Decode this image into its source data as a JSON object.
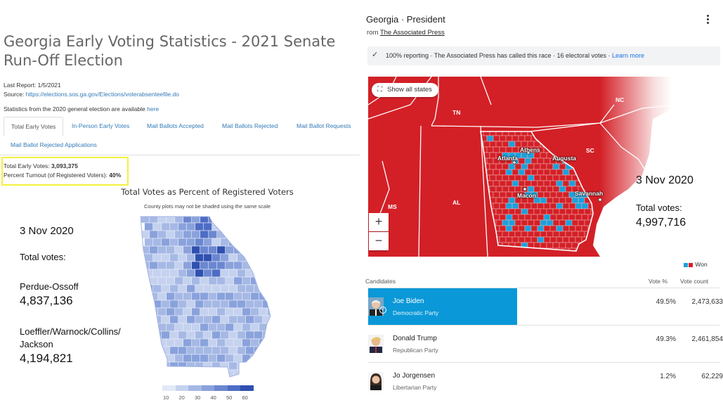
{
  "left": {
    "title": "Georgia Early Voting Statistics - 2021 Senate Run-Off Election",
    "last_report": "Last Report: 1/5/2021",
    "source_label": "Source: ",
    "source_url": "https://elections.sos.ga.gov/Elections/voterabsenteefile.do",
    "general_note_prefix": "Statistics from the 2020 general election are available ",
    "general_note_link": "here",
    "tabs": [
      {
        "label": "Total Early Votes",
        "active": true
      },
      {
        "label": "In-Person Early Votes",
        "active": false
      },
      {
        "label": "Mail Ballots Accepted",
        "active": false
      },
      {
        "label": "Mail Ballots Rejected",
        "active": false
      },
      {
        "label": "Mail Ballot Requests",
        "active": false
      },
      {
        "label": "Mail Ballot Rejected Applications",
        "active": false
      }
    ],
    "highlight": {
      "total_label": "Total Early Votes: ",
      "total_value": "3,093,375",
      "turnout_label": "Percent Turnout (of Registered Voters): ",
      "turnout_value": "40%",
      "border_color": "#f5f03c"
    },
    "map": {
      "title": "Total Votes as Percent of Registered Voters",
      "subtitle": "County plots may not be shaded using the same scale",
      "legend_ticks": [
        "10",
        "20",
        "30",
        "40",
        "50",
        "60"
      ],
      "legend_colors": [
        "#e3e9f7",
        "#c5d2ef",
        "#a6b9e5",
        "#8aa2dc",
        "#6b87d0",
        "#4d6cc4",
        "#2f50b0"
      ]
    },
    "overlay": {
      "date": "3 Nov 2020",
      "total_votes_label": "Total votes:",
      "pair1_label": "Perdue-Ossoff",
      "pair1_value": "4,837,136",
      "pair2_label_line1": "Loeffler/Warnock/Collins/",
      "pair2_label_line2": "Jackson",
      "pair2_value": "4,194,821"
    }
  },
  "right": {
    "title": "Georgia · President",
    "source_prefix": "rom ",
    "source_link": "The Associated Press",
    "more_icon": "more-vert-icon",
    "status_text": "100% reporting · The Associated Press has called this race · 16 electoral votes · ",
    "learn_more": "Learn more",
    "show_all_states": "Show all states",
    "zoom_in": "+",
    "zoom_out": "−",
    "state_labels": [
      "TN",
      "NC",
      "SC",
      "MS",
      "AL"
    ],
    "city_labels": [
      "Athens",
      "Atlanta",
      "Augusta",
      "Macon",
      "Savannah"
    ],
    "colors": {
      "rep": "#d32027",
      "dem": "#1aa1dc",
      "dem_bar": "#0a98d8"
    },
    "overlay": {
      "date": "3 Nov 2020",
      "total_votes_label": "Total votes:",
      "total_votes_value": "4,997,716"
    },
    "legend_won": "Won",
    "table": {
      "col_candidates": "Candidates",
      "col_pct": "Vote %",
      "col_count": "Vote count",
      "rows": [
        {
          "name": "Joe Biden",
          "party": "Democratic Party",
          "pct": "49.5%",
          "count": "2,473,633",
          "winner": true
        },
        {
          "name": "Donald Trump",
          "party": "Republican Party",
          "pct": "49.3%",
          "count": "2,461,854",
          "winner": false
        },
        {
          "name": "Jo Jorgensen",
          "party": "Libertarian Party",
          "pct": "1.2%",
          "count": "62,229",
          "winner": false
        }
      ]
    }
  }
}
